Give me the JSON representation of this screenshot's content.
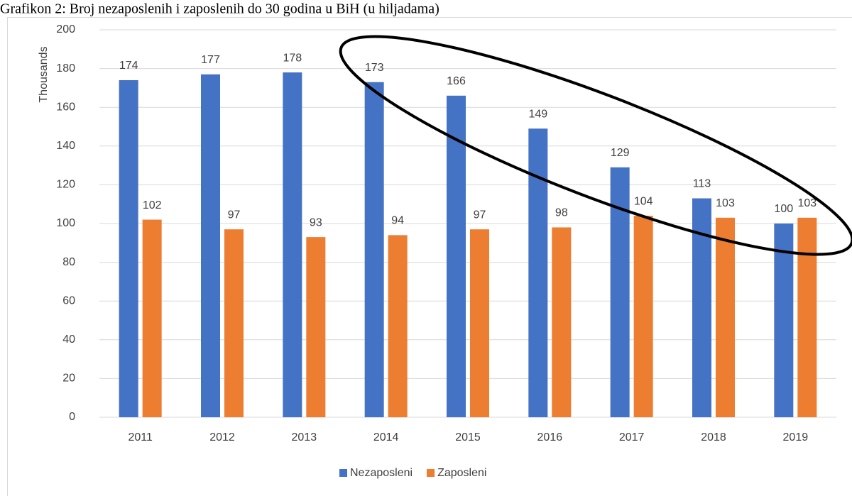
{
  "chart_data": {
    "type": "bar",
    "title": "Grafikon 2: Broj nezaposlenih i zaposlenih do 30 godina u BiH (u hiljadama)",
    "y_label": "Thousands",
    "categories": [
      "2011",
      "2012",
      "2013",
      "2014",
      "2015",
      "2016",
      "2017",
      "2018",
      "2019"
    ],
    "series": [
      {
        "name": "Nezaposleni",
        "color": "#4472c4",
        "values": [
          174,
          177,
          178,
          173,
          166,
          149,
          129,
          113,
          100
        ]
      },
      {
        "name": "Zaposleni",
        "color": "#ed7d31",
        "values": [
          102,
          97,
          93,
          94,
          97,
          98,
          104,
          103,
          103
        ]
      }
    ],
    "ylim": [
      0,
      200
    ],
    "yticks": [
      0,
      20,
      40,
      60,
      80,
      100,
      120,
      140,
      160,
      180,
      200
    ],
    "grid": true,
    "legend": "bottom"
  }
}
